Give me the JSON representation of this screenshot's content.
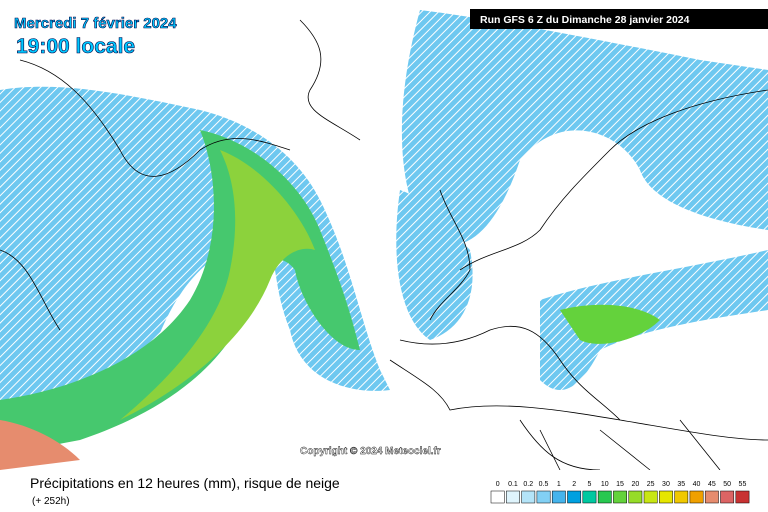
{
  "header": {
    "date": "Mercredi 7 février 2024",
    "time": "19:00 locale",
    "run": "Run GFS 6 Z du Dimanche 28 janvier 2024"
  },
  "copyright": "Copyright © 2024 Meteociel.fr",
  "footer": {
    "title": "Précipitations en 12 heures (mm), risque de neige",
    "lead": "(+ 252h)"
  },
  "legend": {
    "values": [
      0,
      0.1,
      0.2,
      0.5,
      1,
      2,
      5,
      10,
      15,
      20,
      25,
      30,
      35,
      40,
      45,
      50,
      55
    ],
    "colors": [
      "#ffffff",
      "#dff4fc",
      "#b4e4f8",
      "#82d0f4",
      "#46b4ec",
      "#00a0e0",
      "#00c8a0",
      "#28c850",
      "#64d23c",
      "#96dc28",
      "#c8e614",
      "#e6e600",
      "#f0c800",
      "#f0a000",
      "#e68c6e",
      "#dc6464",
      "#c83232"
    ]
  }
}
